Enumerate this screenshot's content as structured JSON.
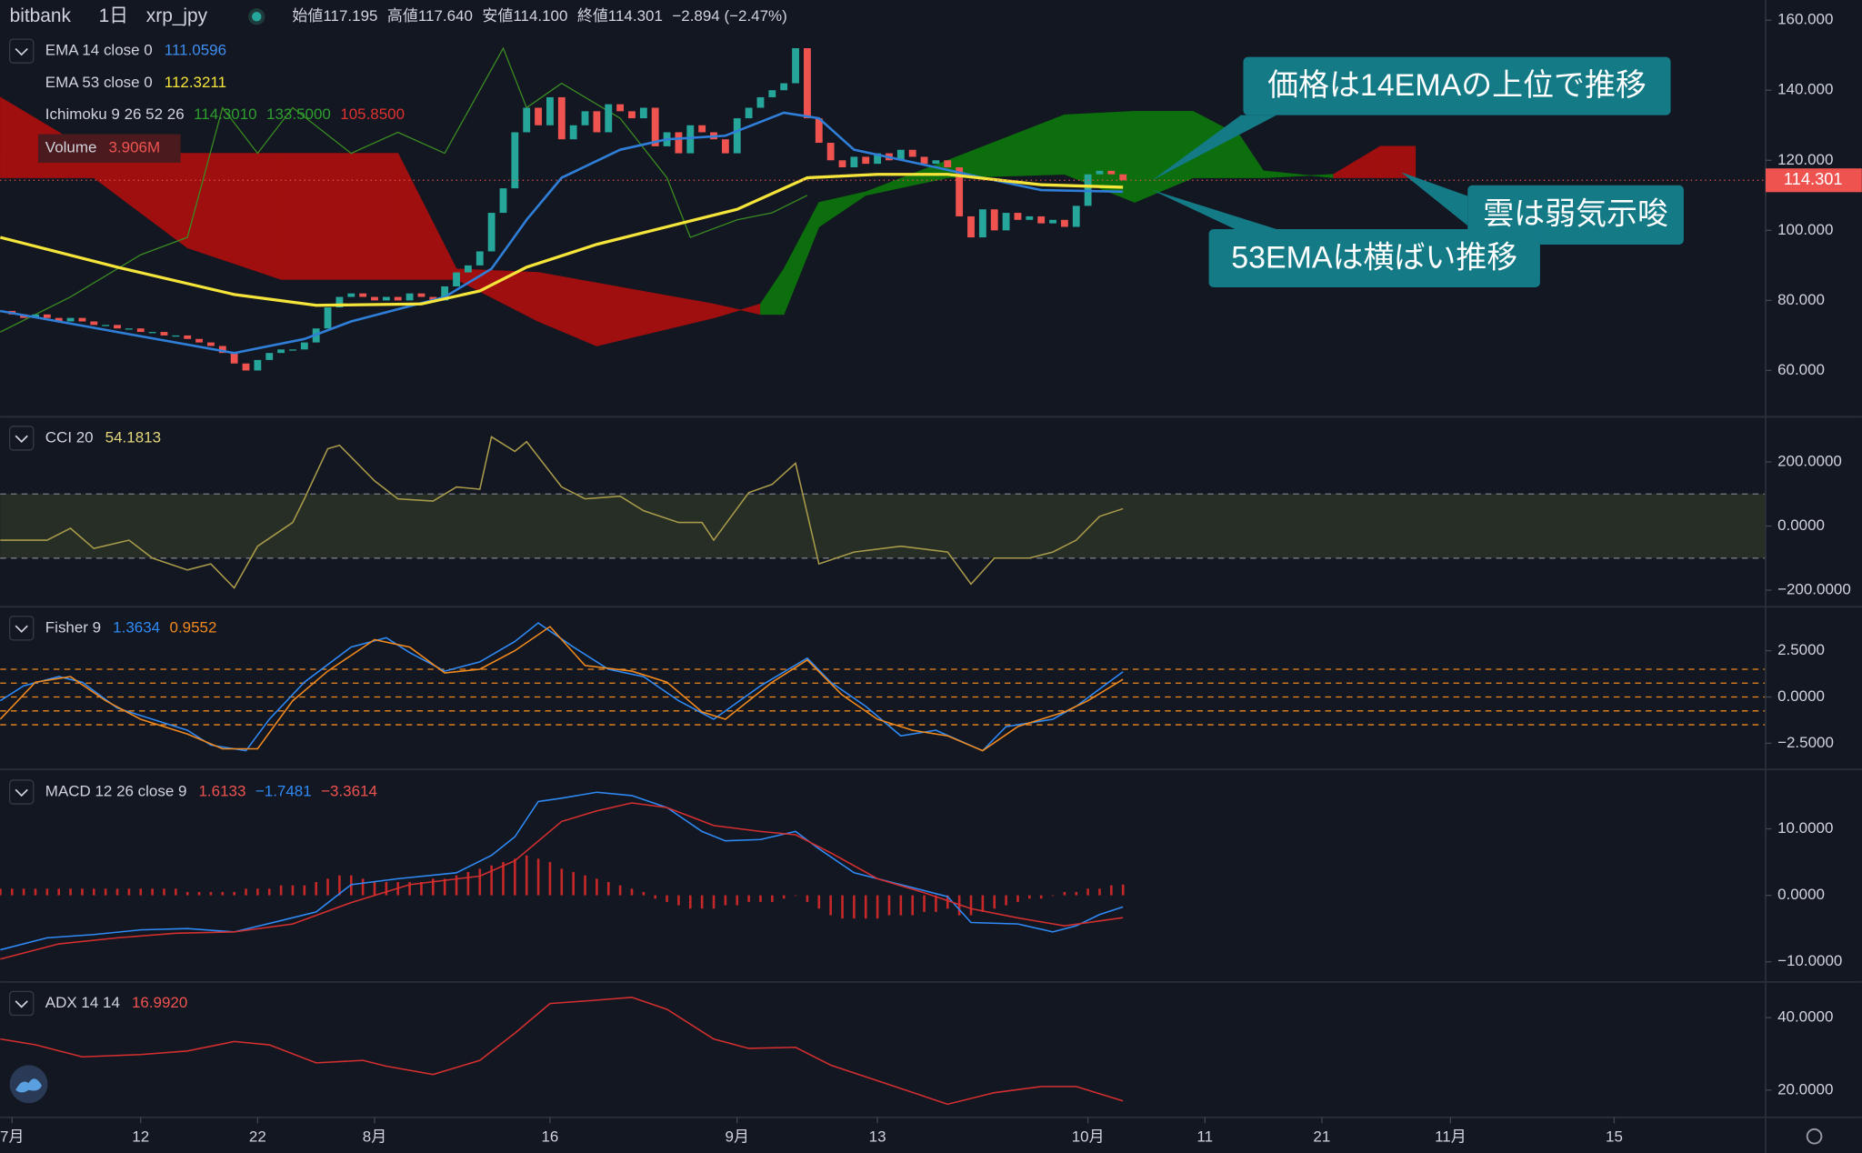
{
  "header": {
    "exchange": "bitbank",
    "interval": "1日",
    "symbol": "xrp_jpy",
    "ohlc": [
      {
        "label": "始値",
        "value": "117.195"
      },
      {
        "label": "高値",
        "value": "117.640"
      },
      {
        "label": "安値",
        "value": "114.100"
      },
      {
        "label": "終値",
        "value": "114.301"
      }
    ],
    "change": "−2.894 (−2.47%)"
  },
  "chart_data": [
    {
      "type": "candlestick",
      "x": [
        -1,
        0,
        1,
        2,
        3,
        4,
        5,
        6,
        7,
        8,
        9,
        10,
        11,
        12,
        13,
        14,
        15,
        16,
        17,
        18,
        19,
        20,
        21,
        22,
        23,
        24,
        25,
        26,
        27,
        28,
        29,
        30,
        31,
        32,
        33,
        34,
        35,
        36,
        37,
        38,
        39,
        40,
        41,
        42,
        43,
        44,
        45,
        46,
        47,
        48,
        49,
        50,
        51,
        52,
        53,
        54,
        55,
        56,
        57,
        58,
        59,
        60,
        61,
        62,
        63,
        64,
        65,
        66,
        67,
        68,
        69,
        70,
        71,
        72,
        73,
        74,
        75,
        76,
        77,
        78,
        79,
        80,
        81,
        82,
        83,
        84,
        85,
        86,
        87,
        88,
        89,
        90,
        91,
        92,
        93,
        94,
        95
      ],
      "close": [
        77,
        76,
        75,
        76,
        75,
        74,
        75,
        74,
        73,
        73,
        72,
        72,
        71,
        71,
        70,
        70,
        69,
        68,
        67,
        65,
        62,
        60,
        63,
        65,
        66,
        66,
        68,
        72,
        78,
        81,
        82,
        81,
        80,
        81,
        80,
        82,
        81,
        80,
        84,
        88,
        90,
        94,
        105,
        112,
        128,
        135,
        130,
        138,
        126,
        130,
        134,
        128,
        136,
        134,
        132,
        135,
        124,
        128,
        122,
        130,
        128,
        126,
        122,
        132,
        135,
        138,
        140,
        142,
        152,
        132,
        125,
        120,
        118,
        121,
        119,
        122,
        120,
        123,
        121,
        119,
        120,
        118,
        104,
        98,
        106,
        100,
        105,
        103,
        104,
        102,
        103,
        101,
        107,
        116,
        117,
        116,
        114.301
      ],
      "up_color": "#26a69a",
      "down_color": "#ef5350",
      "ylim": [
        47.12,
        165.76
      ],
      "yticks": [
        {
          "value": 160,
          "label": "160.000"
        },
        {
          "value": 140,
          "label": "140.000"
        },
        {
          "value": 120,
          "label": "120.000"
        },
        {
          "value": 100,
          "label": "100.000"
        },
        {
          "value": 80,
          "label": "80.000"
        },
        {
          "value": 60,
          "label": "60.000"
        }
      ],
      "xlim": [
        -1.015,
        149.95
      ],
      "xticks": [
        {
          "value": 0,
          "label": "7月"
        },
        {
          "value": 11,
          "label": "12"
        },
        {
          "value": 21,
          "label": "22"
        },
        {
          "value": 31,
          "label": "8月"
        },
        {
          "value": 46,
          "label": "16"
        },
        {
          "value": 62,
          "label": "9月"
        },
        {
          "value": 74,
          "label": "13"
        },
        {
          "value": 92,
          "label": "10月"
        },
        {
          "value": 102,
          "label": "11"
        },
        {
          "value": 112,
          "label": "21"
        },
        {
          "value": 123,
          "label": "11月"
        },
        {
          "value": 137,
          "label": "15"
        }
      ],
      "lines": [
        {
          "name": "EMA 14 close 0",
          "color": "#2f7ed8",
          "x": [
            -1,
            19,
            25,
            29,
            37,
            41,
            44,
            47,
            52,
            56,
            61,
            66,
            69,
            72,
            79,
            83,
            88,
            95
          ],
          "values": [
            77,
            65,
            69,
            74,
            81,
            89,
            103,
            115,
            123,
            126,
            127,
            133.6,
            132,
            123,
            118,
            115,
            111.5,
            111.0596
          ]
        },
        {
          "name": "EMA 53 close 0",
          "color": "#f5e43a",
          "x": [
            -1,
            9,
            19,
            26,
            35,
            40,
            44,
            50,
            56,
            62,
            68,
            74,
            80,
            88,
            95
          ],
          "values": [
            98,
            89.5,
            81.7,
            78.6,
            79,
            82.7,
            89.5,
            96,
            101,
            106,
            115,
            116,
            116,
            113,
            112.3211
          ]
        }
      ],
      "ichimoku": {
        "name": "Ichimoku 9 26 52 26",
        "x": [
          -1,
          7,
          15,
          23,
          33,
          38,
          45,
          50,
          60,
          64,
          66,
          69,
          73,
          80,
          90,
          96,
          101,
          105,
          107,
          113,
          117,
          118,
          120
        ],
        "span_a": [
          115,
          115,
          95,
          86,
          86,
          86,
          74,
          67,
          75,
          79,
          89,
          108,
          111,
          120,
          133,
          134,
          134,
          127,
          117,
          115,
          115,
          115,
          115
        ],
        "span_b": [
          138,
          122,
          122,
          122,
          122,
          89,
          88,
          85,
          79,
          76,
          76,
          101,
          110,
          115,
          116,
          108,
          115,
          115,
          115,
          116,
          124,
          124,
          124
        ],
        "up_color": "#0c6e0c",
        "down_color": "#a00f0f",
        "lagging": {
          "color": "#3a8a22",
          "x": [
            -1,
            5,
            11,
            15,
            18,
            21,
            24,
            29,
            33,
            37,
            42,
            44,
            47,
            52,
            56,
            58,
            62,
            65,
            68
          ],
          "values": [
            71,
            81,
            93,
            98,
            135,
            122,
            135,
            122,
            128,
            122,
            152,
            135,
            142,
            132,
            115,
            98,
            103,
            105,
            110
          ]
        },
        "legend_values": [
          {
            "text": "114.3010",
            "color": "#2e9e2e"
          },
          {
            "text": "133.5000",
            "color": "#2e9e2e"
          },
          {
            "text": "105.8500",
            "color": "#e0322e"
          }
        ]
      },
      "volume": {
        "name": "Volume",
        "legend_value": "3.906M"
      },
      "annotations": [
        "価格は14EMAの上位で推移",
        "雲は弱気示唆",
        "53EMAは横ばい推移"
      ]
    },
    {
      "type": "line",
      "title": "CCI 20",
      "band": [
        -100,
        100
      ],
      "series": [
        {
          "color": "#a89a4a",
          "x": [
            -1,
            3,
            5,
            7,
            10,
            12,
            15,
            17,
            19,
            21,
            24,
            25,
            27,
            28,
            31,
            33,
            36,
            38,
            40,
            41,
            43,
            44,
            47,
            49,
            52,
            54,
            57,
            59,
            60,
            63,
            65,
            67,
            69,
            72,
            76,
            80,
            82,
            84,
            87,
            89,
            91,
            93,
            95
          ],
          "values": [
            -44,
            -44,
            -7,
            -70,
            -44,
            -100,
            -137,
            -118,
            -193,
            -63,
            11,
            85,
            241,
            252,
            141,
            85,
            78,
            122,
            115,
            278,
            233,
            263,
            122,
            85,
            93,
            48,
            11,
            11,
            -44,
            104,
            130,
            196,
            -118,
            -81,
            -63,
            -81,
            -181,
            -100,
            -100,
            -81,
            -44,
            30,
            54.1813
          ],
          "legend_color": "#e5d67a"
        }
      ],
      "ylim": [
        -248,
        337
      ],
      "yticks": [
        {
          "value": 200,
          "label": "200.0000"
        },
        {
          "value": 0,
          "label": "0.0000"
        },
        {
          "value": -200,
          "label": "−200.0000"
        }
      ]
    },
    {
      "type": "line",
      "title": "Fisher 9",
      "levels": [
        1.5,
        0.75,
        0,
        -0.75,
        -1.5
      ],
      "series": [
        {
          "color": "#2f8af5",
          "x": [
            -1,
            1,
            4,
            6,
            9,
            12,
            15,
            17,
            20,
            22,
            25,
            29,
            32,
            34,
            37,
            40,
            43,
            45,
            48,
            51,
            54,
            57,
            60,
            64,
            68,
            70,
            73,
            76,
            79,
            83,
            85,
            89,
            91,
            95
          ],
          "values": [
            -0.2,
            0.6,
            1.1,
            0.8,
            -0.6,
            -1.2,
            -1.8,
            -2.6,
            -2.9,
            -1.2,
            0.8,
            2.7,
            3.2,
            2.4,
            1.4,
            1.9,
            3.0,
            4.0,
            2.7,
            1.5,
            1.1,
            -0.2,
            -1.2,
            0.6,
            2.1,
            0.8,
            -0.5,
            -2.1,
            -1.8,
            -2.9,
            -1.6,
            -1.2,
            -0.5,
            1.3634
          ]
        },
        {
          "color": "#f0891e",
          "x": [
            -1,
            2,
            5,
            8,
            11,
            15,
            18,
            21,
            24,
            27,
            31,
            34,
            37,
            40,
            43,
            46,
            49,
            53,
            56,
            59,
            61,
            65,
            68,
            71,
            74,
            77,
            80,
            83,
            86,
            90,
            92,
            95
          ],
          "values": [
            -1.2,
            0.8,
            1.1,
            -0.2,
            -1.2,
            -2.0,
            -2.8,
            -2.8,
            -0.2,
            1.4,
            3.1,
            2.7,
            1.3,
            1.5,
            2.5,
            3.8,
            1.7,
            1.4,
            0.8,
            -0.8,
            -1.2,
            0.8,
            2.0,
            0.1,
            -1.2,
            -1.8,
            -2.1,
            -2.9,
            -1.6,
            -0.8,
            -0.2,
            0.9552
          ]
        }
      ],
      "ylim": [
        -3.85,
        4.81
      ],
      "yticks": [
        {
          "value": 2.5,
          "label": "2.5000"
        },
        {
          "value": 0,
          "label": "0.0000"
        },
        {
          "value": -2.5,
          "label": "−2.5000"
        }
      ]
    },
    {
      "type": "macd",
      "title": "MACD 12 26 close 9",
      "histogram": {
        "color": "#c62828",
        "last_label": "1.6133",
        "x": [
          -1,
          0,
          1,
          2,
          3,
          4,
          5,
          6,
          7,
          8,
          9,
          10,
          11,
          12,
          13,
          14,
          15,
          16,
          17,
          18,
          19,
          20,
          21,
          22,
          23,
          24,
          25,
          26,
          27,
          28,
          29,
          30,
          31,
          32,
          33,
          34,
          35,
          36,
          37,
          38,
          39,
          40,
          41,
          42,
          43,
          44,
          45,
          46,
          47,
          48,
          49,
          50,
          51,
          52,
          53,
          54,
          55,
          56,
          57,
          58,
          59,
          60,
          61,
          62,
          63,
          64,
          65,
          66,
          67,
          68,
          69,
          70,
          71,
          72,
          73,
          74,
          75,
          76,
          77,
          78,
          79,
          80,
          81,
          82,
          83,
          84,
          85,
          86,
          87,
          88,
          89,
          90,
          91,
          92,
          93,
          94,
          95
        ],
        "values": [
          1,
          1,
          1,
          1,
          1,
          1,
          1,
          1,
          1,
          1,
          1,
          1,
          1,
          1,
          1,
          1,
          0.5,
          0.5,
          0.5,
          0.5,
          0.5,
          1,
          1,
          1,
          1.5,
          1.5,
          1.5,
          2,
          2.5,
          3,
          3,
          2.5,
          2,
          2,
          2,
          2,
          2,
          2.5,
          2.5,
          3,
          3.5,
          4,
          4.5,
          5,
          5.5,
          6,
          5.5,
          5,
          4,
          3.5,
          3,
          2.5,
          2,
          1.5,
          1,
          0.5,
          -0.5,
          -1,
          -1.5,
          -2,
          -2,
          -2,
          -1.5,
          -1.5,
          -1,
          -1,
          -1,
          -0.5,
          0,
          -1,
          -2,
          -3,
          -3.5,
          -3.5,
          -3.5,
          -3.5,
          -3,
          -3,
          -3,
          -2.5,
          -2.5,
          -2,
          -3,
          -3,
          -2.5,
          -2,
          -1.5,
          -1,
          -0.5,
          -0.5,
          0,
          0.5,
          0.5,
          1,
          1,
          1.5,
          1.6133
        ]
      },
      "series": [
        {
          "color": "#2f8af5",
          "last_label": "−1.7481",
          "x": [
            -1,
            3,
            7,
            11,
            15,
            19,
            23,
            26,
            29,
            33,
            38,
            41,
            43,
            45,
            47,
            50,
            53,
            56,
            59,
            61,
            64,
            67,
            69,
            72,
            76,
            80,
            82,
            86,
            89,
            91,
            93,
            95
          ],
          "values": [
            -8.2,
            -6.4,
            -5.9,
            -5.2,
            -5,
            -5.5,
            -3.8,
            -2.5,
            1.6,
            2.5,
            3.4,
            6,
            8.8,
            14.1,
            14.6,
            15.5,
            15,
            13.2,
            9.6,
            8.2,
            8.4,
            9.6,
            7,
            3.4,
            1.6,
            -0.2,
            -4.1,
            -4.3,
            -5.5,
            -4.6,
            -2.9,
            -1.7481
          ]
        },
        {
          "color": "#d32f2f",
          "last_label": "−3.3614",
          "x": [
            -1,
            4,
            9,
            14,
            19,
            24,
            29,
            34,
            40,
            43,
            47,
            50,
            53,
            56,
            60,
            64,
            67,
            70,
            74,
            78,
            82,
            86,
            90,
            95
          ],
          "values": [
            -9.6,
            -7.3,
            -6.4,
            -5.7,
            -5.5,
            -4.3,
            -1.1,
            1.6,
            2.9,
            5.2,
            11.1,
            12.7,
            13.9,
            13.2,
            10.5,
            9.6,
            9.1,
            6.4,
            2.5,
            0.4,
            -2,
            -3.4,
            -4.6,
            -3.3614
          ]
        }
      ],
      "ylim": [
        -12.86,
        18.75
      ],
      "yticks": [
        {
          "value": 10,
          "label": "10.0000"
        },
        {
          "value": 0,
          "label": "0.0000"
        },
        {
          "value": -10,
          "label": "−10.0000"
        }
      ]
    },
    {
      "type": "line",
      "title": "ADX 14 14",
      "series": [
        {
          "color": "#d32f2f",
          "last_label": "16.9920",
          "x": [
            -1,
            2,
            6,
            11,
            15,
            19,
            22,
            26,
            30,
            32,
            36,
            40,
            43,
            46,
            49,
            53,
            56,
            60,
            63,
            67,
            70,
            74,
            80,
            84,
            88,
            91,
            95
          ],
          "values": [
            34.1,
            32.5,
            29.2,
            29.8,
            30.8,
            33.4,
            32.5,
            27.5,
            28.2,
            26.6,
            24.3,
            28.2,
            35.7,
            43.9,
            44.6,
            45.6,
            42.3,
            34.1,
            31.5,
            31.8,
            26.9,
            22.6,
            16.1,
            19.3,
            21,
            21,
            16.992
          ]
        }
      ],
      "ylim": [
        12.8,
        49.5
      ],
      "yticks": [
        {
          "value": 40,
          "label": "40.0000"
        },
        {
          "value": 20,
          "label": "20.0000"
        }
      ]
    }
  ]
}
